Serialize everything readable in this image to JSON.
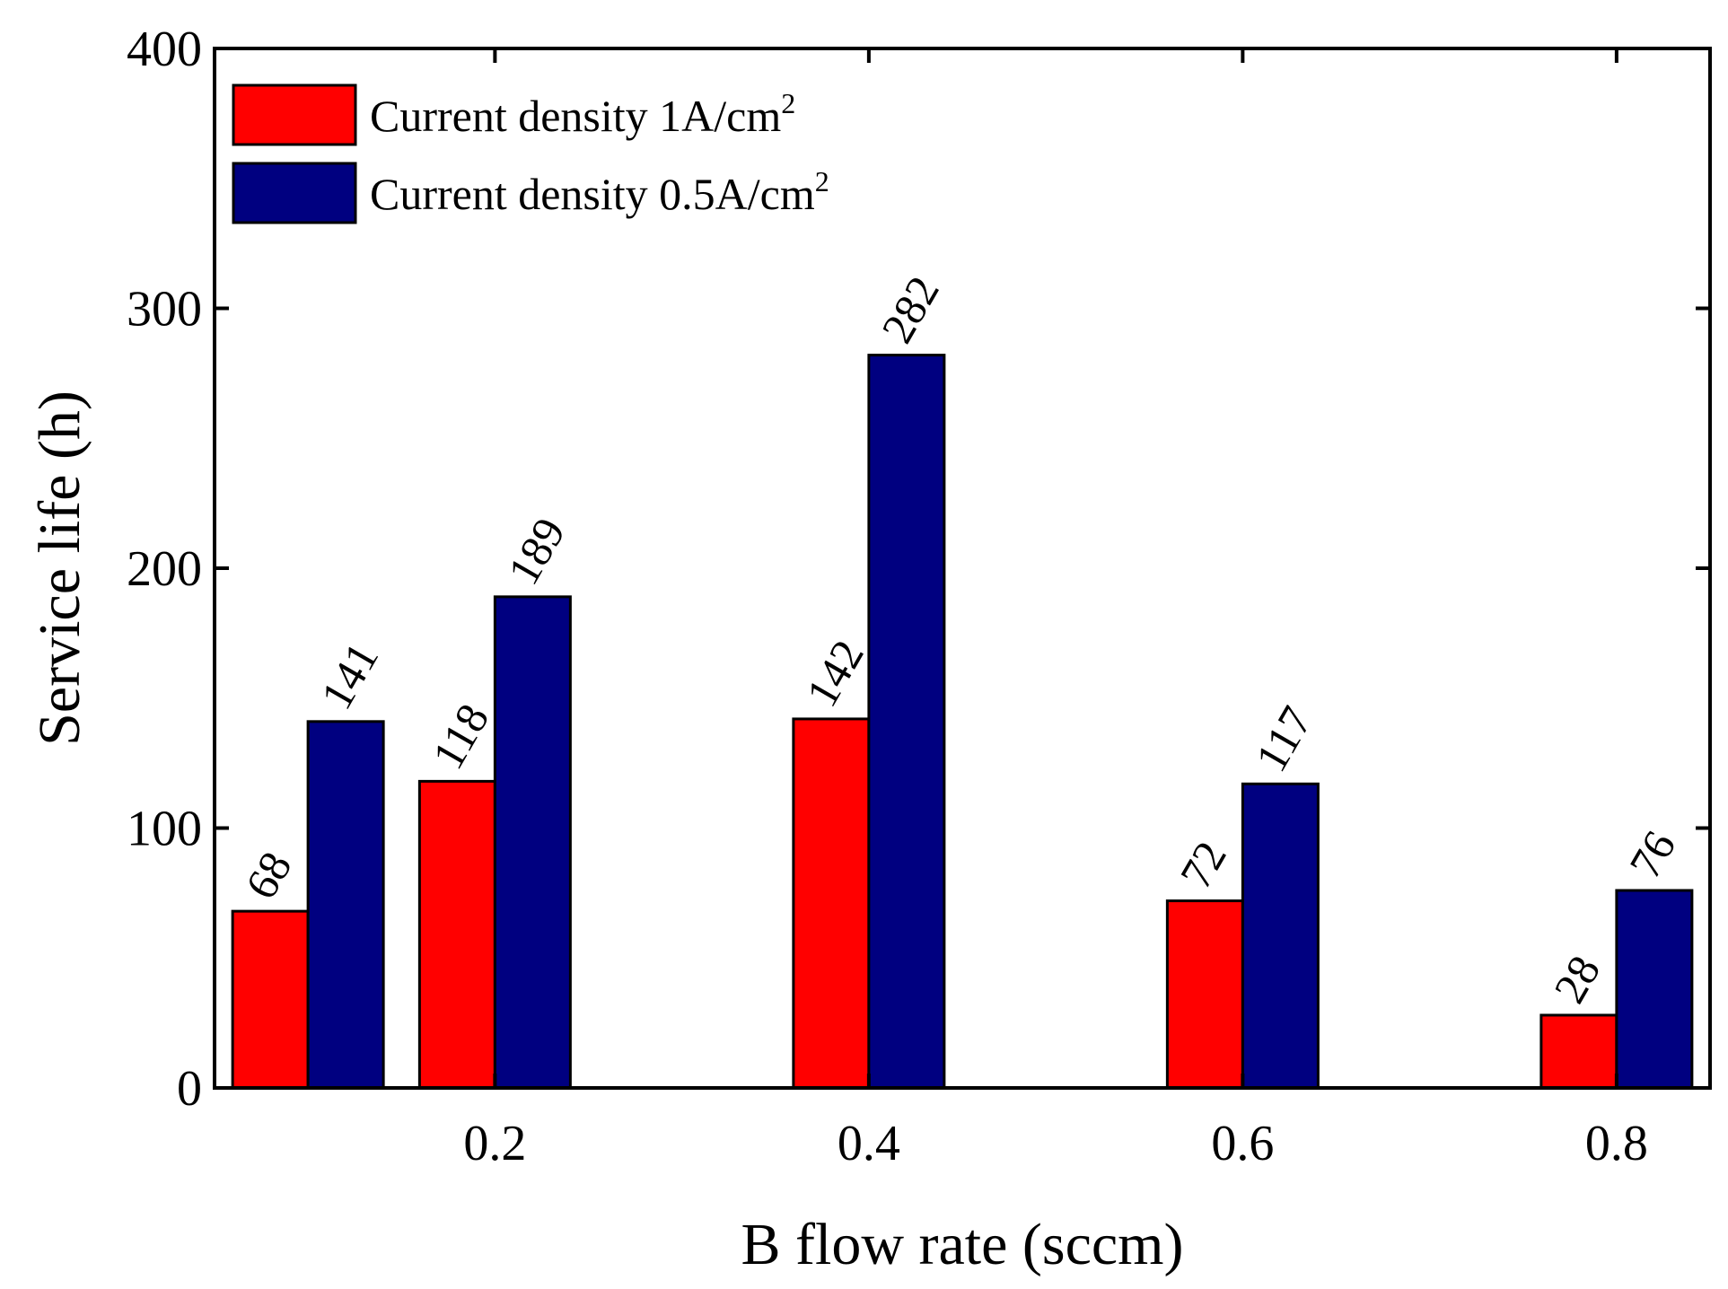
{
  "chart_data": {
    "type": "bar",
    "title": "",
    "xlabel": "B flow rate (sccm)",
    "ylabel": "Service life (h)",
    "ylim": [
      0,
      400
    ],
    "yticks": [
      0,
      100,
      200,
      300,
      400
    ],
    "xlim": [
      0.05,
      0.85
    ],
    "xticks": [
      0.2,
      0.4,
      0.6,
      0.8
    ],
    "xtick_labels": [
      "0.2",
      "0.4",
      "0.6",
      "0.8"
    ],
    "categories": [
      "0.1",
      "0.2",
      "0.4",
      "0.6",
      "0.8"
    ],
    "category_x": [
      0.1,
      0.2,
      0.4,
      0.6,
      0.8
    ],
    "series": [
      {
        "name": "Current density 1A/cm2",
        "legend_text": "Current density 1A/cm",
        "legend_sup": "2",
        "color": "#ff0000",
        "values": [
          68,
          118,
          142,
          72,
          28
        ],
        "labels": [
          "68",
          "118",
          "142",
          "72",
          "28"
        ]
      },
      {
        "name": "Current density 0.5A/cm2",
        "legend_text": "Current density 0.5A/cm",
        "legend_sup": "2",
        "color": "#000080",
        "values": [
          141,
          189,
          282,
          117,
          76
        ],
        "labels": [
          "141",
          "189",
          "282",
          "117",
          "76"
        ]
      }
    ],
    "legend_position": "top-left",
    "grid": false
  }
}
